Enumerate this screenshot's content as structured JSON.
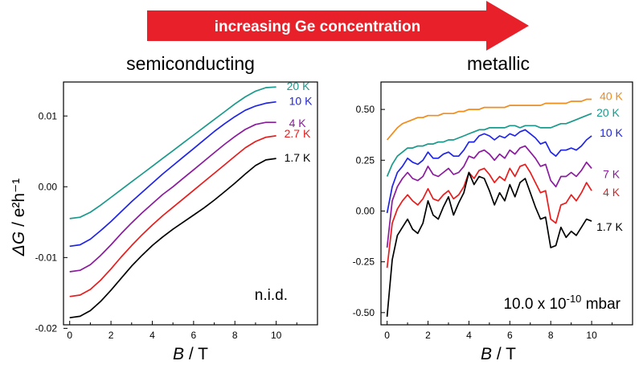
{
  "banner": {
    "text": "increasing Ge concentration",
    "color": "#e8202a"
  },
  "chart_data": [
    {
      "type": "line",
      "title": "semiconducting",
      "annotation": "n.i.d.",
      "xlabel_italic": "B",
      "xlabel_unit": " / T",
      "ylabel_sym": "ΔG",
      "ylabel_unit": " / e²h⁻¹",
      "xlim": [
        -0.3,
        12
      ],
      "ylim": [
        -0.0195,
        0.0148
      ],
      "xticks": [
        0,
        2,
        4,
        6,
        8,
        10
      ],
      "yticks": [
        -0.02,
        -0.01,
        0.0,
        0.01
      ],
      "ytick_labels": [
        "-0.02",
        "-0.01",
        "0.00",
        "0.01"
      ],
      "x": [
        0,
        0.5,
        1,
        1.5,
        2,
        2.5,
        3,
        3.5,
        4,
        4.5,
        5,
        5.5,
        6,
        6.5,
        7,
        7.5,
        8,
        8.5,
        9,
        9.5,
        10
      ],
      "series": [
        {
          "name": "20 K",
          "color": "#1a9a8c",
          "values": [
            -0.0045,
            -0.0043,
            -0.0036,
            -0.0026,
            -0.0015,
            -0.0004,
            0.0007,
            0.0018,
            0.0029,
            0.004,
            0.0051,
            0.0062,
            0.0073,
            0.0084,
            0.0095,
            0.0106,
            0.0117,
            0.0127,
            0.0135,
            0.014,
            0.0141
          ]
        },
        {
          "name": "10 K",
          "color": "#1f24e8",
          "values": [
            -0.0084,
            -0.0082,
            -0.0074,
            -0.0062,
            -0.0049,
            -0.0035,
            -0.0021,
            -0.0008,
            0.0005,
            0.0018,
            0.003,
            0.0042,
            0.0054,
            0.0066,
            0.0078,
            0.0089,
            0.0099,
            0.0108,
            0.0114,
            0.0118,
            0.012
          ]
        },
        {
          "name": "4 K",
          "color": "#8b1a9e",
          "values": [
            -0.012,
            -0.0118,
            -0.011,
            -0.0097,
            -0.0082,
            -0.0066,
            -0.0051,
            -0.0037,
            -0.0024,
            -0.0011,
            0.0,
            0.0012,
            0.0024,
            0.0036,
            0.0048,
            0.006,
            0.0071,
            0.0081,
            0.0088,
            0.0091,
            0.0091
          ]
        },
        {
          "name": "2.7 K",
          "color": "#e81c1c",
          "values": [
            -0.0155,
            -0.0153,
            -0.0145,
            -0.0132,
            -0.0116,
            -0.0099,
            -0.0083,
            -0.0068,
            -0.0054,
            -0.0041,
            -0.0029,
            -0.0017,
            -0.0005,
            0.0007,
            0.0019,
            0.0031,
            0.0043,
            0.0055,
            0.0064,
            0.007,
            0.0072
          ]
        },
        {
          "name": "1.7 K",
          "color": "#000000",
          "values": [
            -0.0185,
            -0.0183,
            -0.0175,
            -0.0162,
            -0.0146,
            -0.0129,
            -0.0112,
            -0.0097,
            -0.0083,
            -0.0071,
            -0.006,
            -0.005,
            -0.004,
            -0.003,
            -0.0019,
            -0.0007,
            0.0005,
            0.0018,
            0.003,
            0.0038,
            0.004
          ]
        }
      ]
    },
    {
      "type": "line",
      "title": "metallic",
      "annotation_base": "10.0 x 10",
      "annotation_exp": "-10",
      "annotation_unit": " mbar",
      "xlabel_italic": "B",
      "xlabel_unit": " / T",
      "xlim": [
        -0.3,
        12
      ],
      "ylim": [
        -0.56,
        0.635
      ],
      "xticks": [
        0,
        2,
        4,
        6,
        8,
        10
      ],
      "yticks": [
        -0.5,
        -0.25,
        0.0,
        0.25,
        0.5
      ],
      "ytick_labels": [
        "-0.50",
        "-0.25",
        "0.00",
        "0.25",
        "0.50"
      ],
      "x": [
        0,
        0.25,
        0.5,
        0.75,
        1,
        1.25,
        1.5,
        1.75,
        2,
        2.25,
        2.5,
        2.75,
        3,
        3.25,
        3.5,
        3.75,
        4,
        4.25,
        4.5,
        4.75,
        5,
        5.25,
        5.5,
        5.75,
        6,
        6.25,
        6.5,
        6.75,
        7,
        7.25,
        7.5,
        7.75,
        8,
        8.25,
        8.5,
        8.75,
        9,
        9.25,
        9.5,
        9.75,
        10
      ],
      "series": [
        {
          "name": "40 K",
          "color": "#f28c1a",
          "values": [
            0.35,
            0.38,
            0.41,
            0.43,
            0.44,
            0.45,
            0.46,
            0.46,
            0.47,
            0.47,
            0.47,
            0.48,
            0.48,
            0.48,
            0.49,
            0.49,
            0.5,
            0.5,
            0.5,
            0.51,
            0.51,
            0.51,
            0.51,
            0.51,
            0.52,
            0.52,
            0.52,
            0.52,
            0.52,
            0.52,
            0.52,
            0.53,
            0.53,
            0.53,
            0.53,
            0.53,
            0.54,
            0.54,
            0.54,
            0.55,
            0.55
          ]
        },
        {
          "name": "20 K",
          "color": "#1a9a8c",
          "values": [
            0.17,
            0.23,
            0.27,
            0.29,
            0.31,
            0.31,
            0.32,
            0.32,
            0.33,
            0.33,
            0.34,
            0.34,
            0.35,
            0.35,
            0.36,
            0.37,
            0.38,
            0.39,
            0.4,
            0.4,
            0.41,
            0.41,
            0.41,
            0.41,
            0.42,
            0.42,
            0.41,
            0.42,
            0.42,
            0.42,
            0.41,
            0.41,
            0.41,
            0.42,
            0.43,
            0.43,
            0.44,
            0.45,
            0.46,
            0.47,
            0.48
          ]
        },
        {
          "name": "10 K",
          "color": "#1f24e8",
          "values": [
            -0.01,
            0.12,
            0.19,
            0.22,
            0.26,
            0.24,
            0.23,
            0.25,
            0.29,
            0.26,
            0.26,
            0.28,
            0.29,
            0.27,
            0.27,
            0.3,
            0.34,
            0.34,
            0.37,
            0.38,
            0.37,
            0.35,
            0.37,
            0.36,
            0.38,
            0.37,
            0.39,
            0.4,
            0.38,
            0.36,
            0.33,
            0.34,
            0.29,
            0.27,
            0.3,
            0.3,
            0.31,
            0.3,
            0.32,
            0.35,
            0.37
          ]
        },
        {
          "name": "7 K",
          "color": "#8b1a9e",
          "values": [
            -0.18,
            0.05,
            0.12,
            0.16,
            0.19,
            0.16,
            0.15,
            0.17,
            0.22,
            0.18,
            0.17,
            0.19,
            0.21,
            0.18,
            0.19,
            0.22,
            0.27,
            0.26,
            0.29,
            0.3,
            0.28,
            0.25,
            0.28,
            0.26,
            0.3,
            0.28,
            0.31,
            0.32,
            0.29,
            0.26,
            0.22,
            0.23,
            0.15,
            0.12,
            0.17,
            0.17,
            0.19,
            0.17,
            0.2,
            0.24,
            0.21
          ]
        },
        {
          "name": "4 K",
          "color": "#e81c1c",
          "values": [
            -0.28,
            -0.06,
            0.01,
            0.05,
            0.08,
            0.05,
            0.03,
            0.06,
            0.11,
            0.06,
            0.05,
            0.08,
            0.1,
            0.06,
            0.08,
            0.12,
            0.19,
            0.16,
            0.2,
            0.21,
            0.18,
            0.14,
            0.17,
            0.15,
            0.21,
            0.17,
            0.22,
            0.23,
            0.19,
            0.14,
            0.09,
            0.1,
            -0.04,
            -0.06,
            0.03,
            0.04,
            0.08,
            0.05,
            0.09,
            0.14,
            0.1
          ]
        },
        {
          "name": "1.7 K",
          "color": "#000000",
          "values": [
            -0.52,
            -0.24,
            -0.12,
            -0.08,
            -0.04,
            -0.09,
            -0.11,
            -0.06,
            0.05,
            -0.02,
            -0.04,
            0.02,
            0.07,
            -0.02,
            0.04,
            0.09,
            0.19,
            0.13,
            0.17,
            0.16,
            0.1,
            0.03,
            0.09,
            0.05,
            0.13,
            0.07,
            0.14,
            0.16,
            0.09,
            0.02,
            -0.04,
            -0.03,
            -0.18,
            -0.17,
            -0.08,
            -0.13,
            -0.1,
            -0.12,
            -0.08,
            -0.04,
            -0.05
          ]
        }
      ]
    }
  ]
}
